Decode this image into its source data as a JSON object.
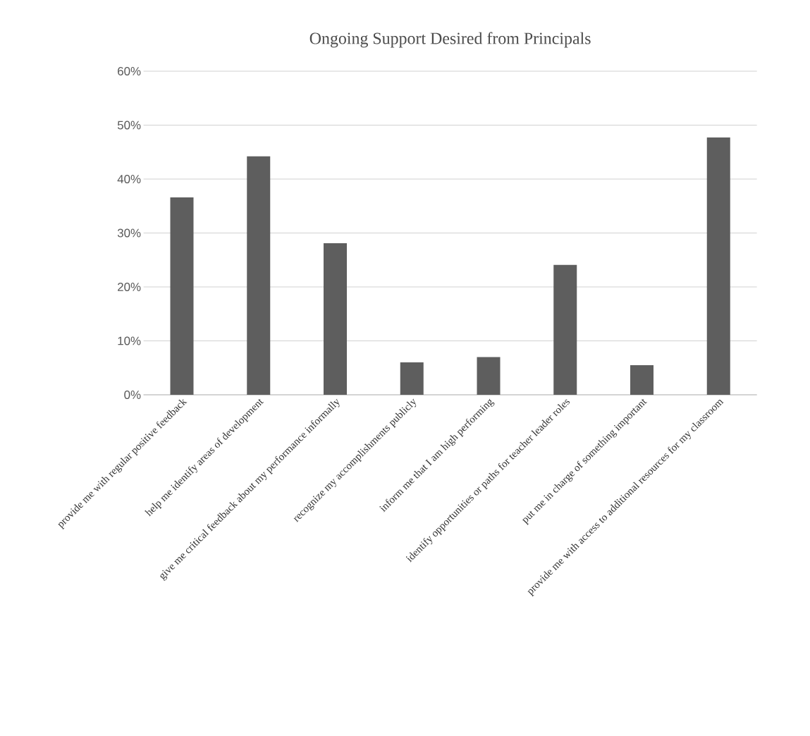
{
  "chart_data": {
    "type": "bar",
    "title": "Ongoing Support Desired from Principals",
    "categories": [
      "provide me with regular positive feedback",
      "help me identify areas of development",
      "give me critical feedback about my performance informally",
      "recognize my accomplishments publicly",
      "inform me that I am high performing",
      "identify opportunities or paths for teacher leader roles",
      "put me in charge of something important",
      "provide me with access to additional resources for my classroom"
    ],
    "values": [
      36.6,
      44.2,
      28.1,
      6.0,
      7.0,
      24.1,
      5.5,
      47.7
    ],
    "color": "#5e5e5e",
    "ylim": [
      0,
      60
    ],
    "yticks": [
      {
        "value": 0,
        "label": "0%"
      },
      {
        "value": 10,
        "label": "10%"
      },
      {
        "value": 20,
        "label": "20%"
      },
      {
        "value": 30,
        "label": "30%"
      },
      {
        "value": 40,
        "label": "40%"
      },
      {
        "value": 50,
        "label": "50%"
      },
      {
        "value": 60,
        "label": "60%"
      }
    ],
    "grid": "y"
  }
}
